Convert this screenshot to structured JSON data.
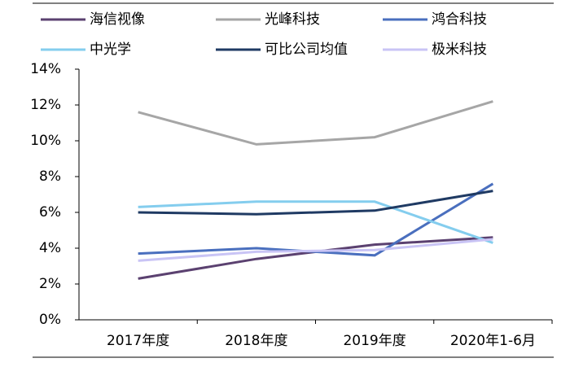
{
  "chart_data": {
    "type": "line",
    "categories": [
      "2017年度",
      "2018年度",
      "2019年度",
      "2020年1-6月"
    ],
    "series": [
      {
        "name": "海信视像",
        "color": "#5b4170",
        "values": [
          2.3,
          3.4,
          4.2,
          4.6
        ]
      },
      {
        "name": "光峰科技",
        "color": "#a6a6a6",
        "values": [
          11.6,
          9.8,
          10.2,
          12.2
        ]
      },
      {
        "name": "鸿合科技",
        "color": "#4a6fbe",
        "values": [
          3.7,
          4.0,
          3.6,
          7.6
        ]
      },
      {
        "name": "中光学",
        "color": "#84cdee",
        "values": [
          6.3,
          6.6,
          6.6,
          4.3
        ]
      },
      {
        "name": "可比公司均值",
        "color": "#1f3a63",
        "values": [
          6.0,
          5.9,
          6.1,
          7.2
        ]
      },
      {
        "name": "极米科技",
        "color": "#c9c4f5",
        "values": [
          3.3,
          3.8,
          3.9,
          4.5
        ]
      }
    ],
    "ylim": [
      0,
      14
    ],
    "yticks": [
      {
        "value": 0,
        "label": "0%"
      },
      {
        "value": 2,
        "label": "2%"
      },
      {
        "value": 4,
        "label": "4%"
      },
      {
        "value": 6,
        "label": "6%"
      },
      {
        "value": 8,
        "label": "8%"
      },
      {
        "value": 10,
        "label": "10%"
      },
      {
        "value": 12,
        "label": "12%"
      },
      {
        "value": 14,
        "label": "14%"
      }
    ],
    "legend": "top",
    "grid": false
  }
}
